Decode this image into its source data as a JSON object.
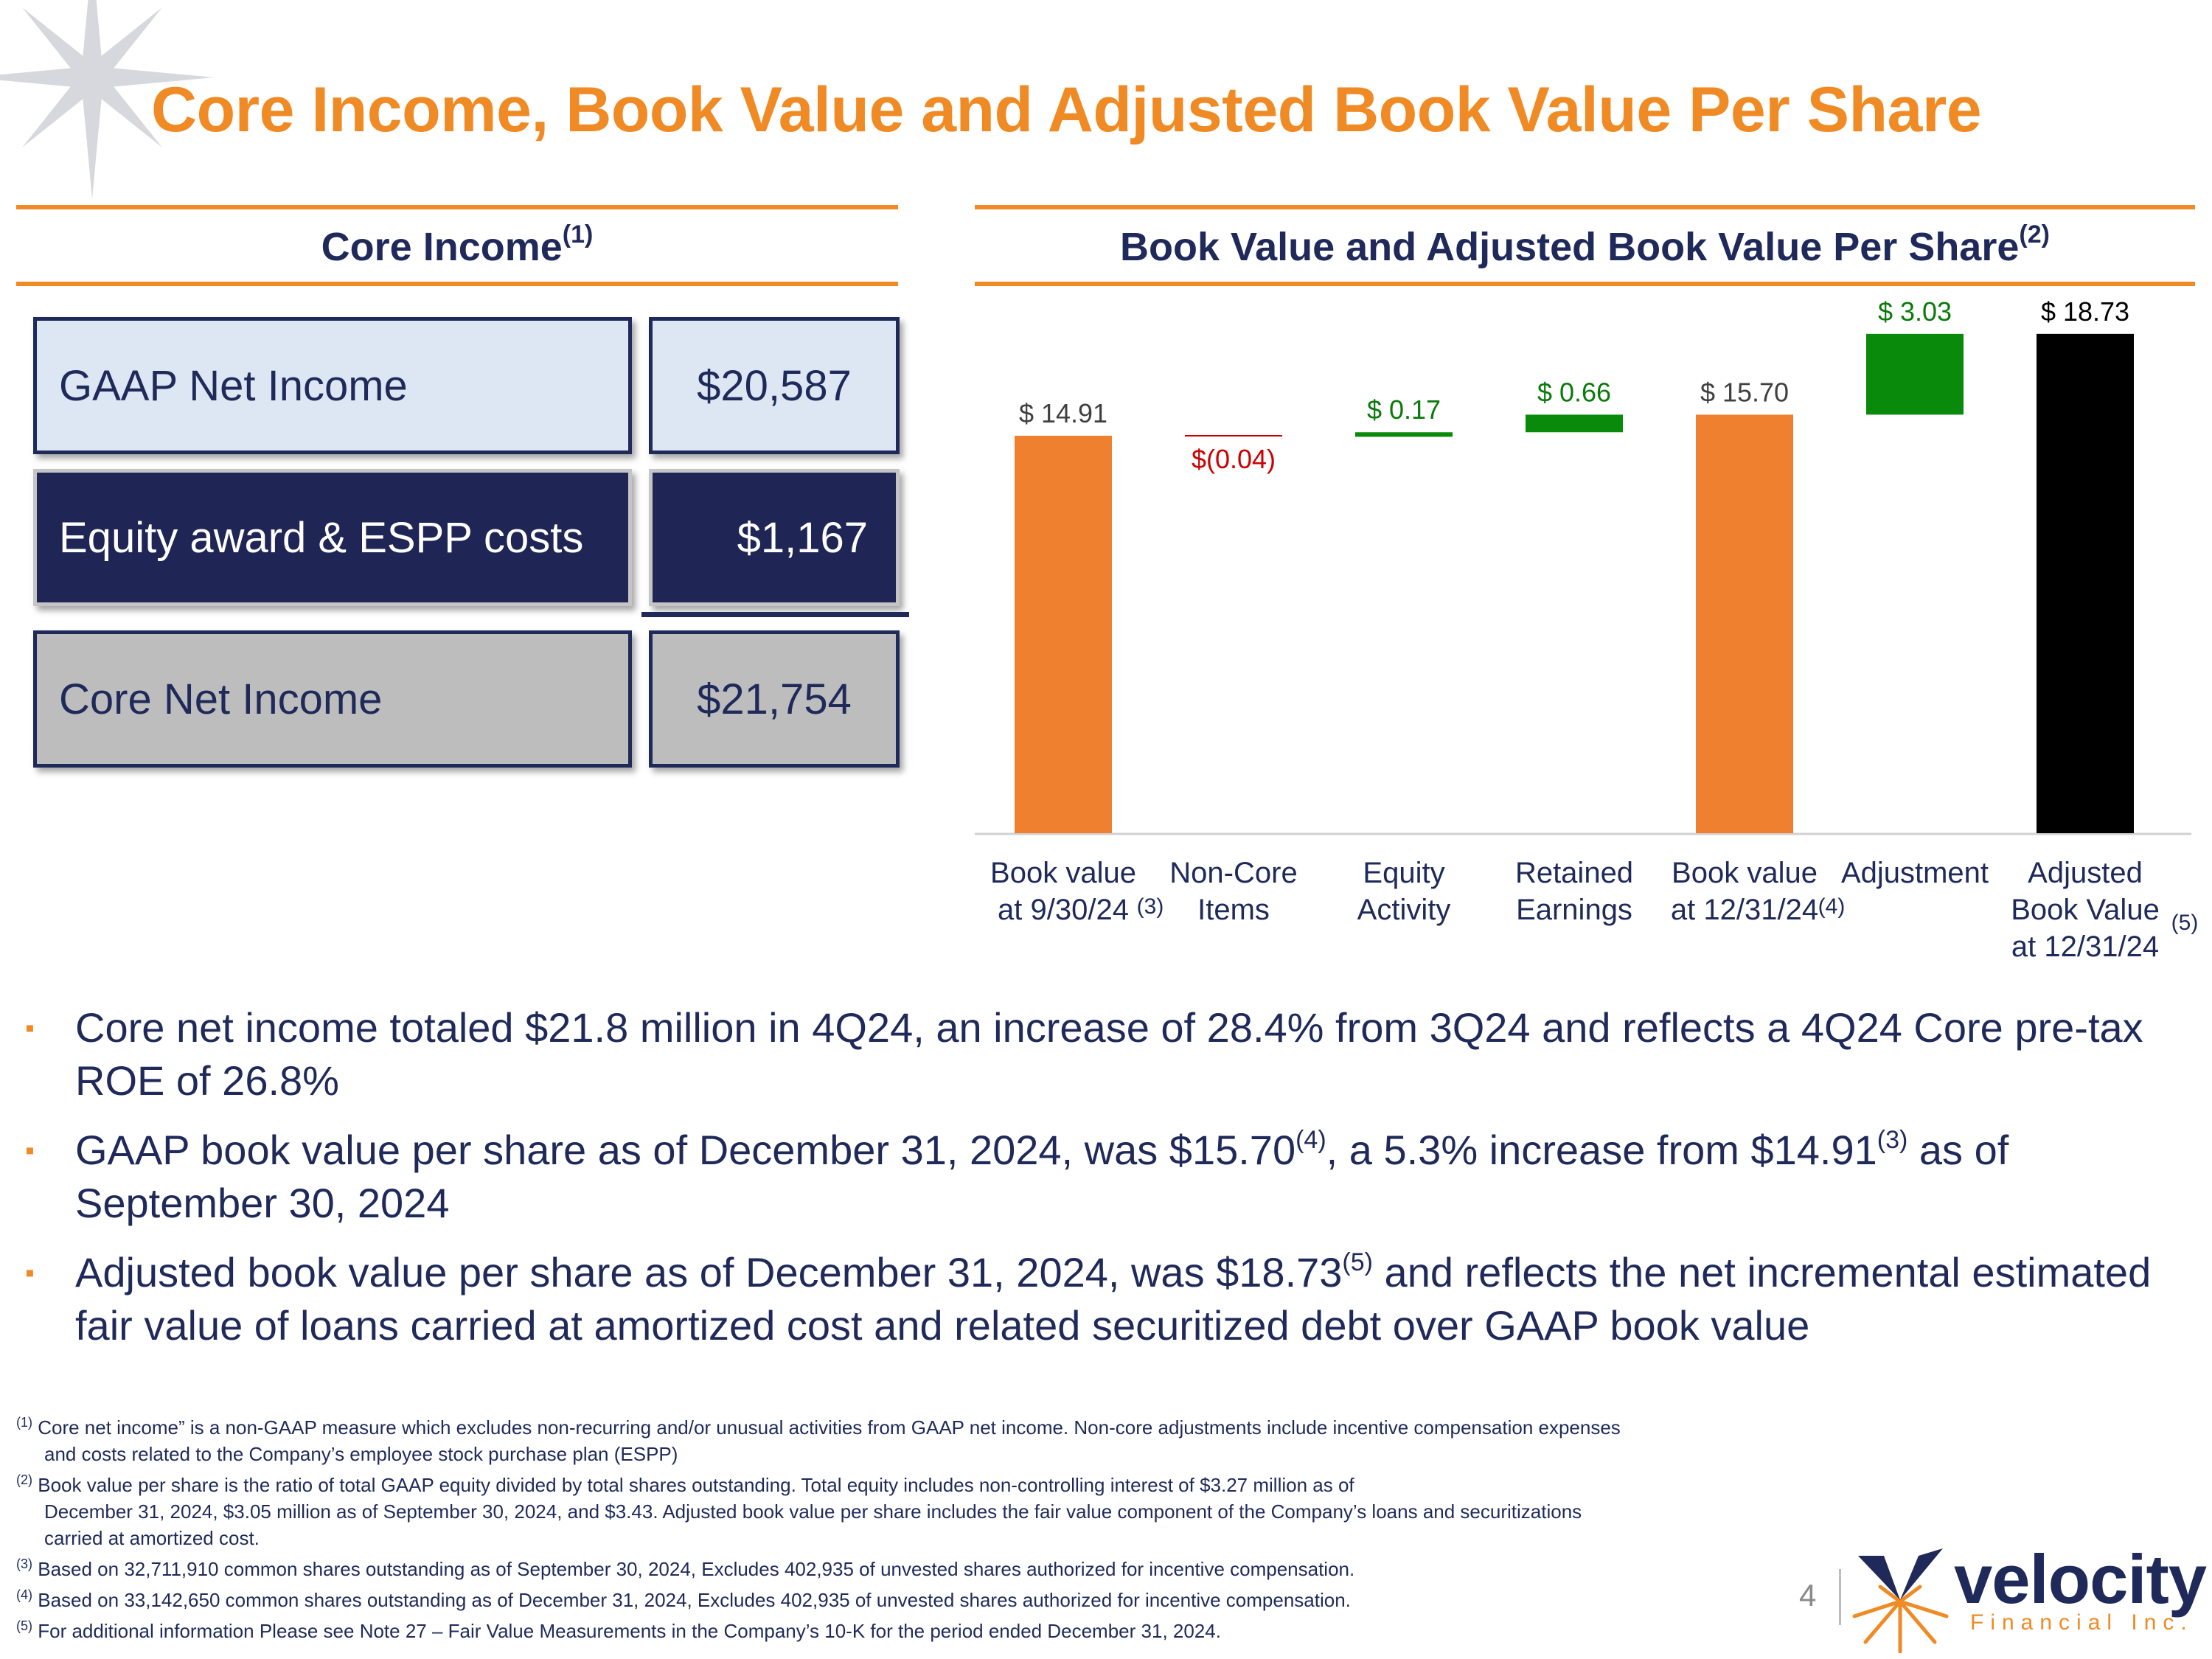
{
  "title": "Core Income, Book Value and Adjusted Book Value Per Share",
  "core_income": {
    "heading": "Core Income",
    "heading_note": "(1)",
    "rows": [
      {
        "label": "GAAP Net Income",
        "value": "$20,587"
      },
      {
        "label": "Equity award & ESPP costs",
        "value": "$1,167"
      },
      {
        "label": "Core Net Income",
        "value": "$21,754"
      }
    ]
  },
  "book_value": {
    "heading": "Book Value and Adjusted Book Value Per Share",
    "heading_note": "(2)"
  },
  "chart_data": {
    "type": "bar",
    "subtype": "waterfall",
    "title": "Book Value and Adjusted Book Value Per Share",
    "categories": [
      {
        "lines": [
          "Book value",
          "at 9/30/24"
        ],
        "note": "(3)"
      },
      {
        "lines": [
          "Non-Core",
          "Items"
        ],
        "note": ""
      },
      {
        "lines": [
          "Equity",
          "Activity"
        ],
        "note": ""
      },
      {
        "lines": [
          "Retained",
          "Earnings"
        ],
        "note": ""
      },
      {
        "lines": [
          "Book value",
          "at 12/31/24"
        ],
        "note": "(4)"
      },
      {
        "lines": [
          "Adjustment"
        ],
        "note": ""
      },
      {
        "lines": [
          "Adjusted",
          "Book Value",
          "at 12/31/24"
        ],
        "note": "(5)"
      }
    ],
    "values": [
      14.91,
      -0.04,
      0.17,
      0.66,
      15.7,
      3.03,
      18.73
    ],
    "kinds": [
      "total",
      "delta",
      "delta",
      "delta",
      "total",
      "delta",
      "total"
    ],
    "labels": [
      "$ 14.91",
      "$(0.04)",
      "$ 0.17",
      "$ 0.66",
      "$ 15.70",
      "$ 3.03",
      "$ 18.73"
    ],
    "colors": {
      "total": "#ef8030",
      "increase": "#0a8a0a",
      "decrease": "#cc0000",
      "final": "#000000",
      "label_total": "#404040",
      "label_increase": "#0a7a0a",
      "label_decrease": "#cc0000",
      "label_final": "#000000"
    },
    "ylim": [
      0,
      19.5
    ],
    "xlabel": "",
    "ylabel": ""
  },
  "bullets": [
    {
      "parts": [
        {
          "t": "Core net income totaled $21.8 million in 4Q24, an increase of 28.4% from 3Q24 and reflects a 4Q24 Core pre-tax ROE of 26.8%"
        }
      ]
    },
    {
      "parts": [
        {
          "t": "GAAP book value per share as of December 31, 2024, was $15.70"
        },
        {
          "sup": "(4)"
        },
        {
          "t": ", a 5.3% increase from $14.91"
        },
        {
          "sup": "(3)"
        },
        {
          "t": " as of September 30, 2024"
        }
      ]
    },
    {
      "parts": [
        {
          "t": "Adjusted book value per share as of December 31, 2024, was $18.73"
        },
        {
          "sup": "(5)"
        },
        {
          "t": " and reflects the net incremental estimated fair value of loans carried at amortized cost and related securitized debt over GAAP book value"
        }
      ]
    }
  ],
  "footnotes": [
    {
      "num": "(1)",
      "line1": "Core net income” is a non-GAAP measure which excludes non-recurring and/or unusual activities from GAAP net income. Non-core adjustments include incentive compensation expenses",
      "line2": "and costs related to the Company’s employee stock purchase plan (ESPP)",
      "line3": ""
    },
    {
      "num": "(2)",
      "line1": "Book value per share is the ratio of total GAAP equity divided by total shares outstanding. Total equity includes non-controlling interest of $3.27 million as of",
      "line2": "December 31, 2024, $3.05 million as of September 30, 2024, and $3.43. Adjusted book value per share includes the fair value component of the Company’s loans and securitizations",
      "line3": "carried at amortized cost."
    },
    {
      "num": "(3)",
      "line1": "Based on 32,711,910 common shares outstanding as of September 30, 2024, Excludes 402,935 of unvested shares authorized for incentive compensation.",
      "line2": "",
      "line3": ""
    },
    {
      "num": "(4)",
      "line1": "Based on 33,142,650 common shares outstanding as of December 31, 2024, Excludes 402,935 of unvested shares authorized for incentive compensation.",
      "line2": "",
      "line3": ""
    },
    {
      "num": "(5)",
      "line1": "For additional information Please see Note 27 – Fair Value Measurements in the Company’s 10-K for the period ended December 31, 2024.",
      "line2": "",
      "line3": ""
    }
  ],
  "page_number": "4",
  "logo": {
    "name": "velocity",
    "tagline": "Financial Inc."
  }
}
